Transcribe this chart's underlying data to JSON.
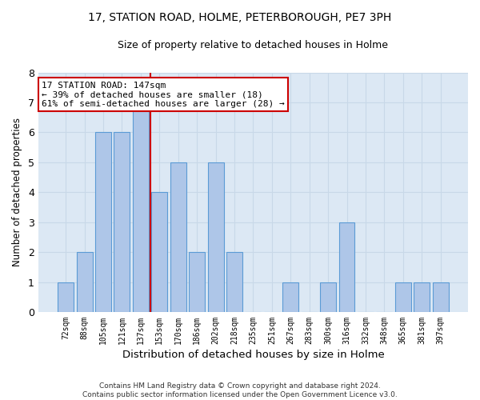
{
  "title1": "17, STATION ROAD, HOLME, PETERBOROUGH, PE7 3PH",
  "title2": "Size of property relative to detached houses in Holme",
  "xlabel": "Distribution of detached houses by size in Holme",
  "ylabel": "Number of detached properties",
  "categories": [
    "72sqm",
    "88sqm",
    "105sqm",
    "121sqm",
    "137sqm",
    "153sqm",
    "170sqm",
    "186sqm",
    "202sqm",
    "218sqm",
    "235sqm",
    "251sqm",
    "267sqm",
    "283sqm",
    "300sqm",
    "316sqm",
    "332sqm",
    "348sqm",
    "365sqm",
    "381sqm",
    "397sqm"
  ],
  "values": [
    1,
    2,
    6,
    6,
    7,
    4,
    5,
    2,
    5,
    2,
    0,
    0,
    1,
    0,
    1,
    3,
    0,
    0,
    1,
    1,
    1
  ],
  "bar_color": "#aec6e8",
  "bar_edge_color": "#5b9bd5",
  "vline_x": 4.5,
  "vline_color": "#cc0000",
  "annotation_text": "17 STATION ROAD: 147sqm\n← 39% of detached houses are smaller (18)\n61% of semi-detached houses are larger (28) →",
  "annotation_box_color": "#ffffff",
  "annotation_box_edge": "#cc0000",
  "ylim": [
    0,
    8
  ],
  "yticks": [
    0,
    1,
    2,
    3,
    4,
    5,
    6,
    7,
    8
  ],
  "footnote": "Contains HM Land Registry data © Crown copyright and database right 2024.\nContains public sector information licensed under the Open Government Licence v3.0.",
  "grid_color": "#c8d8e8",
  "background_color": "#dce8f4"
}
